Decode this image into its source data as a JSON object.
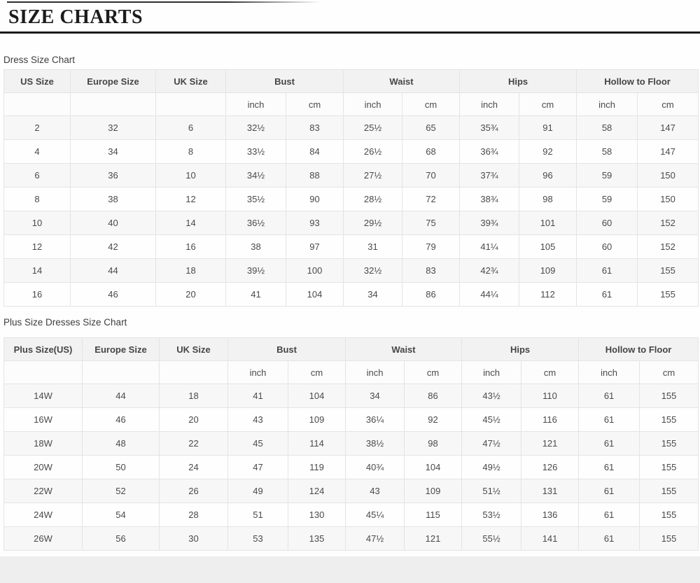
{
  "header": {
    "title": "SIZE CHARTS"
  },
  "colors": {
    "title_rule": "#1a1a1a",
    "header_cell_bg": "#f2f2f2",
    "alt_row_bg": "#f7f7f7",
    "border": "#e4e4e4",
    "text": "#4a4a4a",
    "footer_strip": "#eeeeef"
  },
  "tables": [
    {
      "title": "Dress Size Chart",
      "simple_columns": [
        "US Size",
        "Europe Size",
        "UK Size"
      ],
      "measure_columns": [
        "Bust",
        "Waist",
        "Hips",
        "Hollow to Floor"
      ],
      "unit_labels": [
        "inch",
        "cm"
      ],
      "rows": [
        [
          "2",
          "32",
          "6",
          "32½",
          "83",
          "25½",
          "65",
          "35¾",
          "91",
          "58",
          "147"
        ],
        [
          "4",
          "34",
          "8",
          "33½",
          "84",
          "26½",
          "68",
          "36¾",
          "92",
          "58",
          "147"
        ],
        [
          "6",
          "36",
          "10",
          "34½",
          "88",
          "27½",
          "70",
          "37¾",
          "96",
          "59",
          "150"
        ],
        [
          "8",
          "38",
          "12",
          "35½",
          "90",
          "28½",
          "72",
          "38¾",
          "98",
          "59",
          "150"
        ],
        [
          "10",
          "40",
          "14",
          "36½",
          "93",
          "29½",
          "75",
          "39¾",
          "101",
          "60",
          "152"
        ],
        [
          "12",
          "42",
          "16",
          "38",
          "97",
          "31",
          "79",
          "41¼",
          "105",
          "60",
          "152"
        ],
        [
          "14",
          "44",
          "18",
          "39½",
          "100",
          "32½",
          "83",
          "42¾",
          "109",
          "61",
          "155"
        ],
        [
          "16",
          "46",
          "20",
          "41",
          "104",
          "34",
          "86",
          "44¼",
          "112",
          "61",
          "155"
        ]
      ]
    },
    {
      "title": "Plus Size Dresses Size Chart",
      "simple_columns": [
        "Plus Size(US)",
        "Europe Size",
        "UK Size"
      ],
      "measure_columns": [
        "Bust",
        "Waist",
        "Hips",
        "Hollow to Floor"
      ],
      "unit_labels": [
        "inch",
        "cm"
      ],
      "rows": [
        [
          "14W",
          "44",
          "18",
          "41",
          "104",
          "34",
          "86",
          "43½",
          "110",
          "61",
          "155"
        ],
        [
          "16W",
          "46",
          "20",
          "43",
          "109",
          "36¼",
          "92",
          "45½",
          "116",
          "61",
          "155"
        ],
        [
          "18W",
          "48",
          "22",
          "45",
          "114",
          "38½",
          "98",
          "47½",
          "121",
          "61",
          "155"
        ],
        [
          "20W",
          "50",
          "24",
          "47",
          "119",
          "40¾",
          "104",
          "49½",
          "126",
          "61",
          "155"
        ],
        [
          "22W",
          "52",
          "26",
          "49",
          "124",
          "43",
          "109",
          "51½",
          "131",
          "61",
          "155"
        ],
        [
          "24W",
          "54",
          "28",
          "51",
          "130",
          "45¼",
          "115",
          "53½",
          "136",
          "61",
          "155"
        ],
        [
          "26W",
          "56",
          "30",
          "53",
          "135",
          "47½",
          "121",
          "55½",
          "141",
          "61",
          "155"
        ]
      ]
    }
  ]
}
